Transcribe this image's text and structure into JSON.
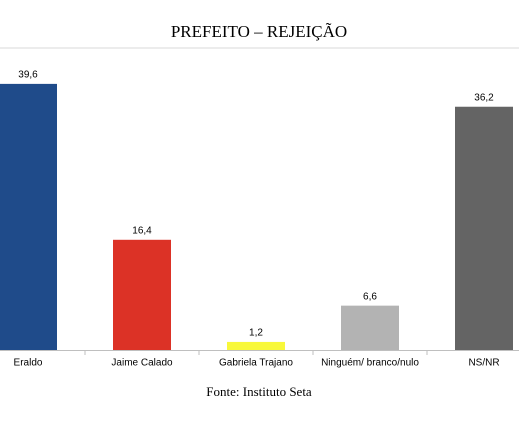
{
  "chart_data": {
    "type": "bar",
    "title": "PREFEITO – REJEIÇÃO",
    "source": "Fonte: Instituto Seta",
    "categories": [
      "Eraldo",
      "Jaime Calado",
      "Gabriela Trajano",
      "Ninguém/ branco/nulo",
      "NS/NR"
    ],
    "values": [
      39.6,
      16.4,
      1.2,
      6.6,
      36.2
    ],
    "value_labels": [
      "39,6",
      "16,4",
      "1,2",
      "6,6",
      "36,2"
    ],
    "colors": [
      "#1f4b8a",
      "#dc3226",
      "#f8f83a",
      "#b3b3b3",
      "#646464"
    ]
  }
}
